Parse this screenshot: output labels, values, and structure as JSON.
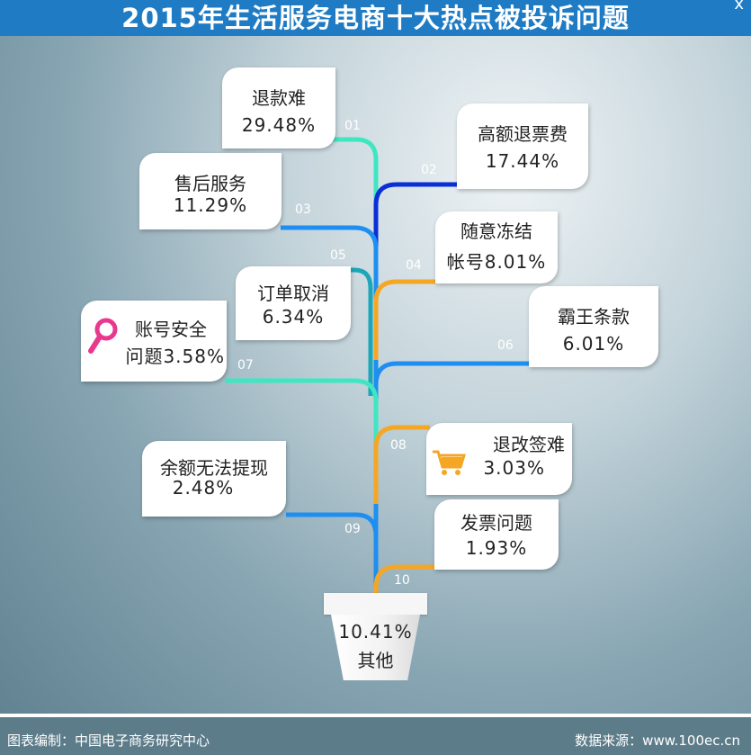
{
  "title": "2015年生活服务电商十大热点被投诉问题",
  "corner_mark": "x",
  "footer": {
    "left": "图表编制：中国电子商务研究中心",
    "right": "数据来源：www.100ec.cn"
  },
  "colors": {
    "title_bar": "#1f7cc4",
    "teal": "#3ee7c2",
    "blue": "#1e8ff0",
    "navy": "#0a2fd6",
    "orange": "#f5a623",
    "pink": "#e8398f"
  },
  "chart_data": {
    "type": "pie",
    "title": "2015年生活服务电商十大热点被投诉问题",
    "items": [
      {
        "index": "01",
        "label": "退款难",
        "value_text": "29.48%",
        "value": 29.48
      },
      {
        "index": "02",
        "label": "高额退票费",
        "value_text": "17.44%",
        "value": 17.44
      },
      {
        "index": "03",
        "label": "售后服务",
        "value_text": "11.29%",
        "value": 11.29
      },
      {
        "index": "04",
        "label": "随意冻结",
        "label2": "帐号",
        "value_text": "8.01%",
        "value": 8.01
      },
      {
        "index": "05",
        "label": "订单取消",
        "value_text": "6.34%",
        "value": 6.34
      },
      {
        "index": "06",
        "label": "霸王条款",
        "value_text": "6.01%",
        "value": 6.01
      },
      {
        "index": "07",
        "label": "账号安全",
        "label2": "问题",
        "value_text": "3.58%",
        "value": 3.58,
        "icon": "magnifier-icon"
      },
      {
        "index": "08",
        "label": "退改签难",
        "value_text": "3.03%",
        "value": 3.03,
        "icon": "shopping-cart-icon"
      },
      {
        "index": "09",
        "label": "余额无法提现",
        "value_text": "2.48%",
        "value": 2.48
      },
      {
        "index": "10",
        "label": "发票问题",
        "value_text": "1.93%",
        "value": 1.93
      }
    ],
    "other": {
      "label": "其他",
      "value_text": "10.41%",
      "value": 10.41
    }
  }
}
